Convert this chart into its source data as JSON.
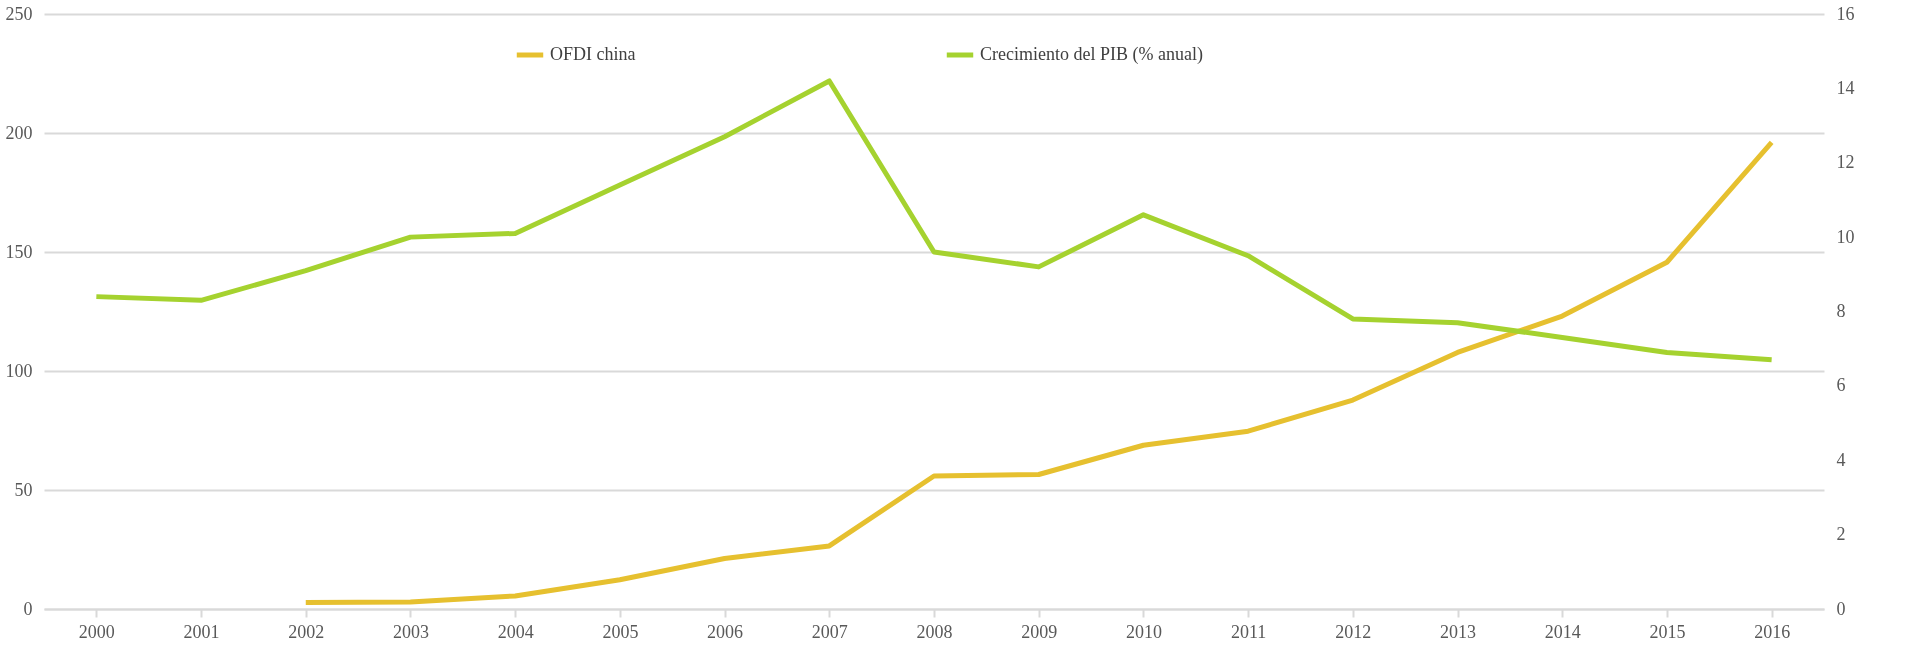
{
  "chart_data": {
    "type": "line",
    "categories": [
      "2000",
      "2001",
      "2002",
      "2003",
      "2004",
      "2005",
      "2006",
      "2007",
      "2008",
      "2009",
      "2010",
      "2011",
      "2012",
      "2013",
      "2014",
      "2015",
      "2016"
    ],
    "series": [
      {
        "name": "OFDI china",
        "color": "#e6c02f",
        "values": [
          null,
          null,
          2.7,
          2.9,
          5.5,
          12.3,
          21.2,
          26.5,
          55.9,
          56.5,
          68.8,
          74.7,
          87.8,
          107.8,
          123.1,
          145.7,
          196.1
        ]
      },
      {
        "name": "Crecimiento del PIB (% anual)",
        "color": "#a5d22f",
        "axis": "y2",
        "values": [
          8.4,
          8.3,
          9.1,
          10.0,
          10.1,
          11.4,
          12.7,
          14.2,
          9.6,
          9.2,
          10.6,
          9.5,
          7.8,
          7.7,
          7.3,
          6.9,
          6.7
        ]
      }
    ],
    "ylim": [
      0,
      250
    ],
    "yticks": [
      0,
      50,
      100,
      150,
      200,
      250
    ],
    "y2lim": [
      0,
      16
    ],
    "y2ticks": [
      0,
      2,
      4,
      6,
      8,
      10,
      12,
      14,
      16
    ],
    "grid": "y",
    "legend": "top",
    "marker": "none",
    "line_style": "solid"
  }
}
